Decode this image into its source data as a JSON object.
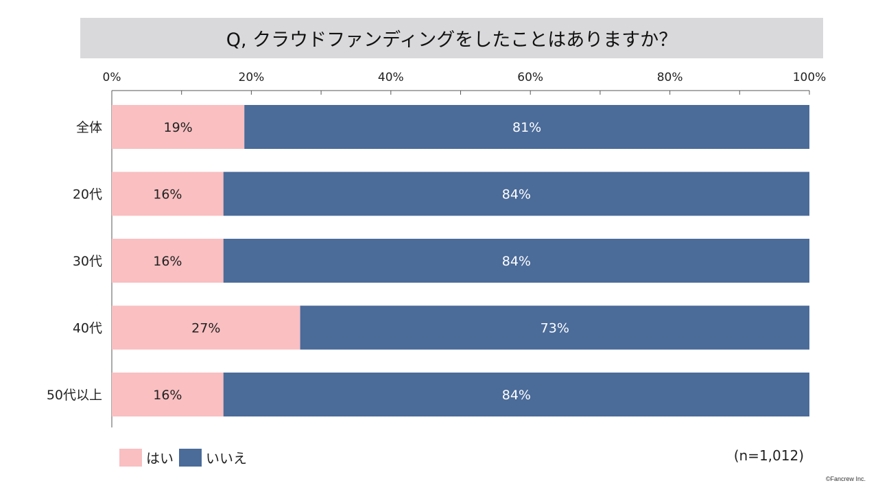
{
  "title": "Q, クラウドファンディングをしたことはありますか？",
  "chart_data": {
    "type": "bar",
    "orientation": "horizontal",
    "stacked": true,
    "categories": [
      "全体",
      "20代",
      "30代",
      "40代",
      "50代以上"
    ],
    "series": [
      {
        "name": "はい",
        "values": [
          19,
          16,
          16,
          27,
          16
        ],
        "color": "#f9bfc1",
        "label_color": "#222222"
      },
      {
        "name": "いいえ",
        "values": [
          81,
          84,
          84,
          73,
          84
        ],
        "color": "#4b6b99",
        "label_color": "#ffffff"
      }
    ],
    "value_suffix": "%",
    "xlim": [
      0,
      100
    ],
    "x_ticks": [
      "0%",
      "20%",
      "40%",
      "60%",
      "80%",
      "100%"
    ],
    "x_axis_position": "top",
    "grid": false,
    "legend_position": "bottom-left"
  },
  "sample_size": "(n=1,012)",
  "copyright": "©Fancrew Inc."
}
